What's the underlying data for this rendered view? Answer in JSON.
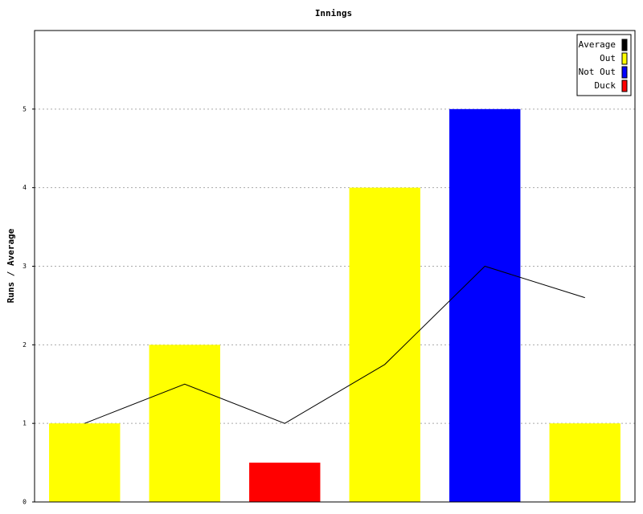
{
  "chart_data": {
    "type": "bar",
    "title": "Innings",
    "y_label": "Runs / Average",
    "categories": [
      null,
      null,
      null,
      null,
      null,
      null
    ],
    "series": [
      {
        "name": "Average",
        "type": "line",
        "color": "#000000",
        "values": [
          1,
          1.5,
          1,
          1.75,
          3,
          2.6
        ]
      },
      {
        "name": "Out",
        "color": "#ffff00",
        "values": [
          1,
          2,
          null,
          4,
          null,
          1
        ]
      },
      {
        "name": "Not Out",
        "color": "#0000ff",
        "values": [
          null,
          null,
          null,
          null,
          5,
          null
        ]
      },
      {
        "name": "Duck",
        "color": "#ff0000",
        "values": [
          null,
          null,
          0.5,
          null,
          null,
          null
        ]
      }
    ],
    "ylim": [
      0,
      6
    ],
    "yticks": [
      0,
      1,
      2,
      3,
      4,
      5
    ],
    "grid": true,
    "legend": "top-right"
  }
}
